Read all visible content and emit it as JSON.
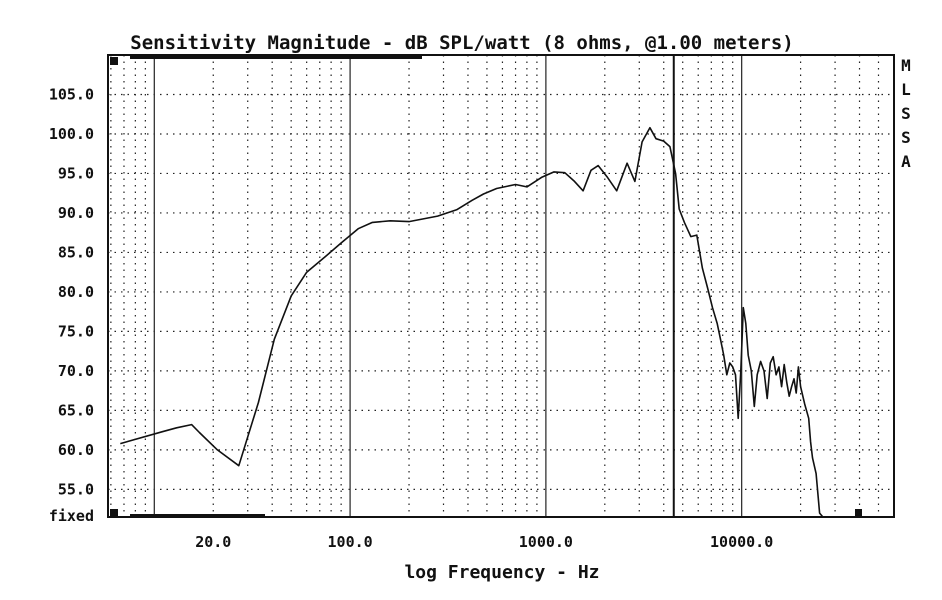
{
  "chart_data": {
    "type": "line",
    "title": "Sensitivity Magnitude - dB SPL/watt (8 ohms, @1.00 meters)",
    "xlabel": "log Frequency - Hz",
    "ylabel": "",
    "x_scale": "log",
    "xlim": [
      5.8,
      60000
    ],
    "ylim": [
      51.5,
      110
    ],
    "y_ticks": [
      55,
      60,
      65,
      70,
      75,
      80,
      85,
      90,
      95,
      100,
      105
    ],
    "y_tick_labels": [
      "55.0",
      "60.0",
      "65.0",
      "70.0",
      "75.0",
      "80.0",
      "85.0",
      "90.0",
      "95.0",
      "100.0",
      "105.0"
    ],
    "x_tick_values": [
      20,
      100,
      1000,
      10000
    ],
    "x_tick_labels": [
      "20.0",
      "100.0",
      "1000.0",
      "10000.0"
    ],
    "y_bottom_label": "fixed",
    "side_label": [
      "M",
      "L",
      "S",
      "S",
      "A"
    ],
    "marker_frequency": 4500,
    "grid": true,
    "series": [
      {
        "x": [
          6.7,
          11,
          13,
          15.5,
          17,
          21,
          27,
          34,
          41,
          50,
          60,
          75,
          90,
          110,
          130,
          160,
          200,
          280,
          350,
          420,
          480,
          560,
          640,
          700,
          800,
          950,
          1100,
          1250,
          1400,
          1550,
          1700,
          1850,
          2050,
          2300,
          2600,
          2850,
          3100,
          3400,
          3650,
          4000,
          4300,
          4600,
          4800,
          5100,
          5500,
          5900,
          6300,
          6700,
          7100,
          7500,
          7800,
          8100,
          8400,
          8700,
          9000,
          9300,
          9600,
          9900,
          10200,
          10500,
          10800,
          11200,
          11600,
          12000,
          12500,
          13000,
          13500,
          14000,
          14500,
          15000,
          15500,
          16000,
          16500,
          17000,
          17500,
          18000,
          18500,
          19000,
          19500,
          20000,
          21000,
          22000,
          22500,
          23000,
          24000,
          25000,
          26000,
          26500,
          27000
        ],
        "y": [
          60.8,
          62.3,
          62.8,
          63.2,
          62.2,
          60.0,
          58.0,
          66.0,
          74.0,
          79.5,
          82.5,
          84.5,
          86.2,
          88.0,
          88.8,
          89.0,
          88.9,
          89.6,
          90.4,
          91.6,
          92.4,
          93.1,
          93.4,
          93.6,
          93.3,
          94.5,
          95.2,
          95.1,
          94.0,
          92.8,
          95.4,
          96.0,
          94.6,
          92.8,
          96.3,
          94.0,
          99.0,
          100.8,
          99.4,
          99.1,
          98.4,
          95.0,
          90.5,
          88.8,
          87.0,
          87.2,
          83.0,
          80.5,
          78.0,
          76.0,
          74.0,
          72.0,
          69.5,
          71.0,
          70.5,
          69.5,
          64.0,
          70.0,
          78.0,
          76.0,
          72.0,
          70.0,
          65.5,
          69.5,
          71.2,
          70.0,
          66.5,
          71.0,
          71.8,
          69.5,
          70.5,
          68.0,
          70.8,
          68.5,
          66.8,
          68.0,
          69.0,
          67.2,
          70.5,
          68.0,
          65.8,
          64.0,
          61.0,
          59.0,
          57.0,
          52.0,
          50.0,
          50.0,
          50.0
        ]
      }
    ]
  }
}
